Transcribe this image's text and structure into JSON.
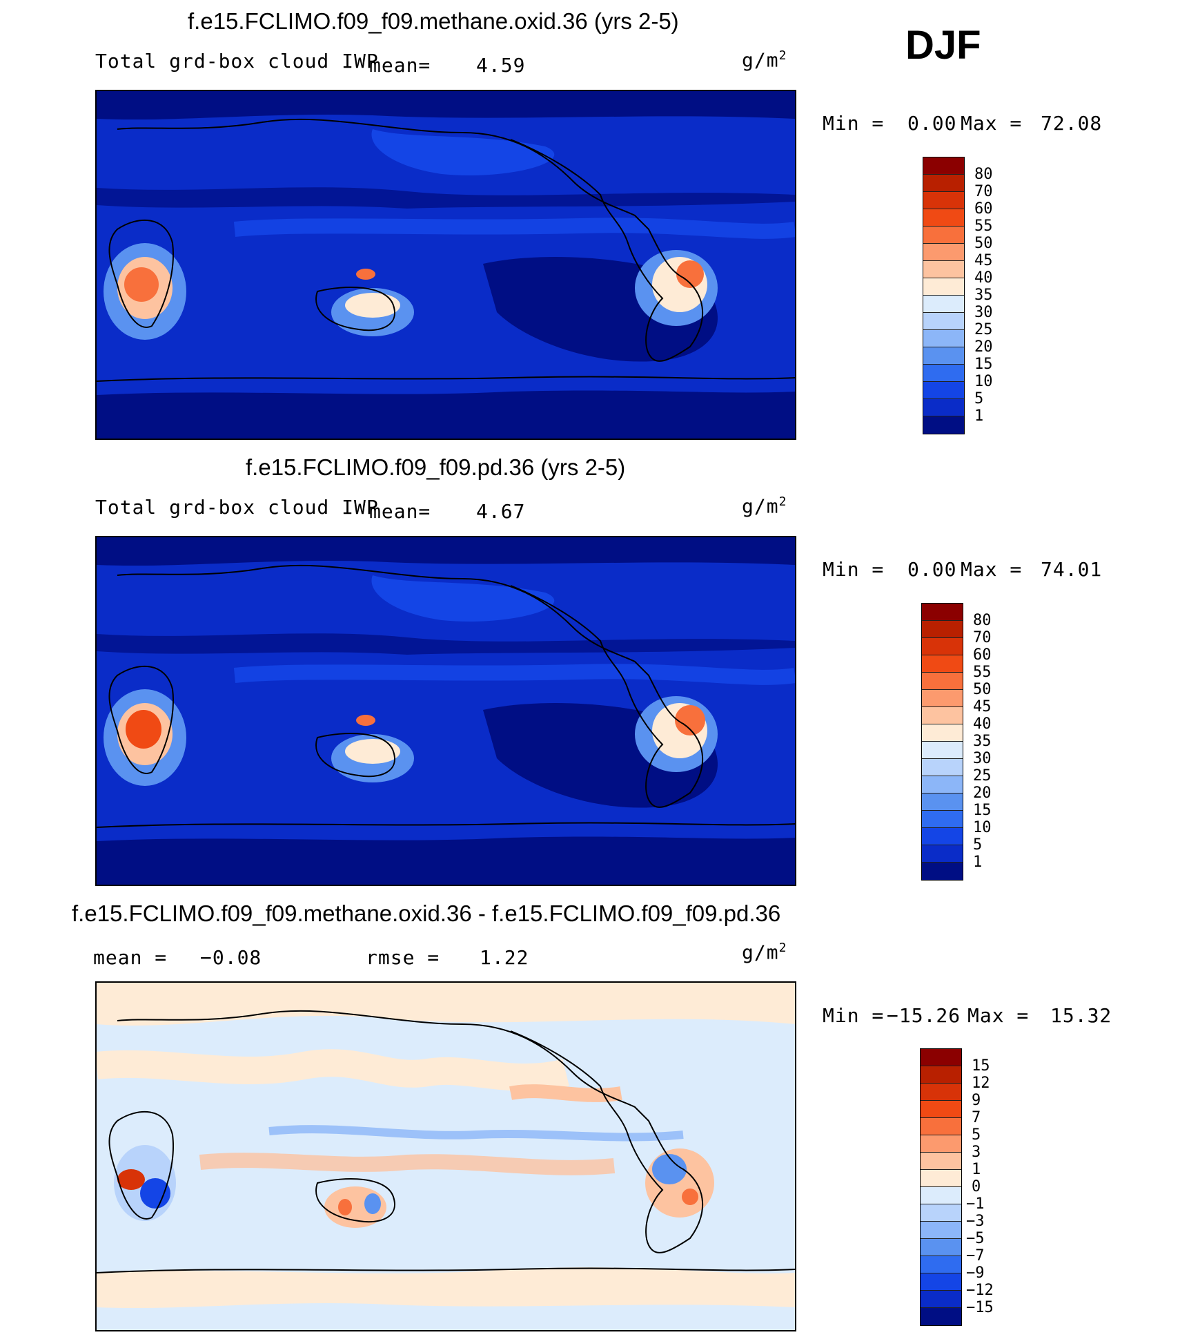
{
  "season": "DJF",
  "chart_data": [
    {
      "type": "heatmap",
      "title": "f.e15.FCLIMO.f09_f09.methane.oxid.36 (yrs 2-5)",
      "variable": "Total grd-box cloud IWP",
      "mean_label": "mean=",
      "mean_value": "4.59",
      "unit_base": "g/m",
      "unit_exp": "2",
      "min_label": "Min =",
      "min_value": "0.00",
      "max_label": "Max =",
      "max_value": "72.08",
      "colorbar_levels": [
        "80",
        "70",
        "60",
        "55",
        "50",
        "45",
        "40",
        "35",
        "30",
        "25",
        "20",
        "15",
        "10",
        "5",
        "1"
      ],
      "colorbar_colors": [
        "#8b0000",
        "#b82000",
        "#d83308",
        "#f04a14",
        "#f8703c",
        "#fc9a6e",
        "#fdc3a0",
        "#feebd6",
        "#dcecfc",
        "#b8d3fb",
        "#8cb6f8",
        "#5a92f0",
        "#2f6cf0",
        "#1445e6",
        "#0a2cc8",
        "#000e84"
      ]
    },
    {
      "type": "heatmap",
      "title": "f.e15.FCLIMO.f09_f09.pd.36 (yrs 2-5)",
      "variable": "Total grd-box cloud IWP",
      "mean_label": "mean=",
      "mean_value": "4.67",
      "unit_base": "g/m",
      "unit_exp": "2",
      "min_label": "Min =",
      "min_value": "0.00",
      "max_label": "Max =",
      "max_value": "74.01",
      "colorbar_levels": [
        "80",
        "70",
        "60",
        "55",
        "50",
        "45",
        "40",
        "35",
        "30",
        "25",
        "20",
        "15",
        "10",
        "5",
        "1"
      ],
      "colorbar_colors": [
        "#8b0000",
        "#b82000",
        "#d83308",
        "#f04a14",
        "#f8703c",
        "#fc9a6e",
        "#fdc3a0",
        "#feebd6",
        "#dcecfc",
        "#b8d3fb",
        "#8cb6f8",
        "#5a92f0",
        "#2f6cf0",
        "#1445e6",
        "#0a2cc8",
        "#000e84"
      ]
    },
    {
      "type": "heatmap",
      "title": "f.e15.FCLIMO.f09_f09.methane.oxid.36 - f.e15.FCLIMO.f09_f09.pd.36",
      "mean_label": "mean =",
      "mean_value": "−0.08",
      "rmse_label": "rmse =",
      "rmse_value": "1.22",
      "unit_base": "g/m",
      "unit_exp": "2",
      "min_label": "Min =",
      "min_value": "−15.26",
      "max_label": "Max =",
      "max_value": "15.32",
      "colorbar_levels": [
        "15",
        "12",
        "9",
        "7",
        "5",
        "3",
        "1",
        "0",
        "−1",
        "−3",
        "−5",
        "−7",
        "−9",
        "−12",
        "−15"
      ],
      "colorbar_colors": [
        "#8b0000",
        "#b82000",
        "#d83308",
        "#f04a14",
        "#f8703c",
        "#fc9a6e",
        "#fdc3a0",
        "#feebd6",
        "#dcecfc",
        "#b8d3fb",
        "#8cb6f8",
        "#5a92f0",
        "#2f6cf0",
        "#1445e6",
        "#0a2cc8",
        "#000e84"
      ]
    }
  ]
}
